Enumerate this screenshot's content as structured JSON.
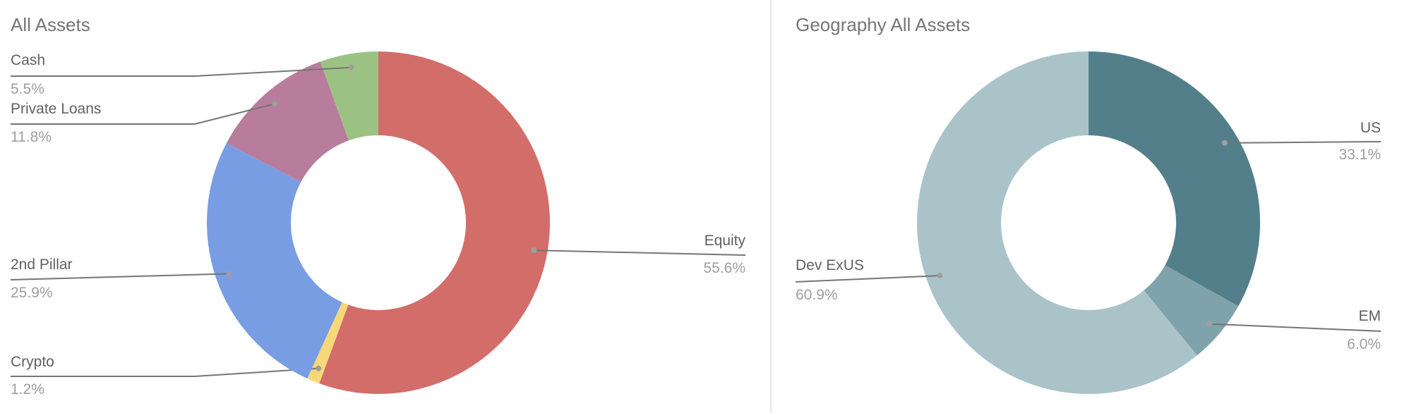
{
  "chart_data": [
    {
      "type": "pie",
      "donut": true,
      "title": "All Assets",
      "start": "top",
      "direction": "clockwise",
      "slices": [
        {
          "label": "Equity",
          "value": 55.6,
          "value_label": "55.6%",
          "color": "#d36d6a"
        },
        {
          "label": "Crypto",
          "value": 1.2,
          "value_label": "1.2%",
          "color": "#f6d879"
        },
        {
          "label": "2nd Pillar",
          "value": 25.9,
          "value_label": "25.9%",
          "color": "#799de3"
        },
        {
          "label": "Private Loans",
          "value": 11.8,
          "value_label": "11.8%",
          "color": "#b87d9c"
        },
        {
          "label": "Cash",
          "value": 5.5,
          "value_label": "5.5%",
          "color": "#9cc283"
        }
      ]
    },
    {
      "type": "pie",
      "donut": true,
      "title": "Geography All Assets",
      "start": "top",
      "direction": "clockwise",
      "slices": [
        {
          "label": "US",
          "value": 33.1,
          "value_label": "33.1%",
          "color": "#537f8b"
        },
        {
          "label": "EM",
          "value": 6.0,
          "value_label": "6.0%",
          "color": "#7fa3ab"
        },
        {
          "label": "Dev ExUS",
          "value": 60.9,
          "value_label": "60.9%",
          "color": "#aac3c8"
        }
      ]
    }
  ]
}
